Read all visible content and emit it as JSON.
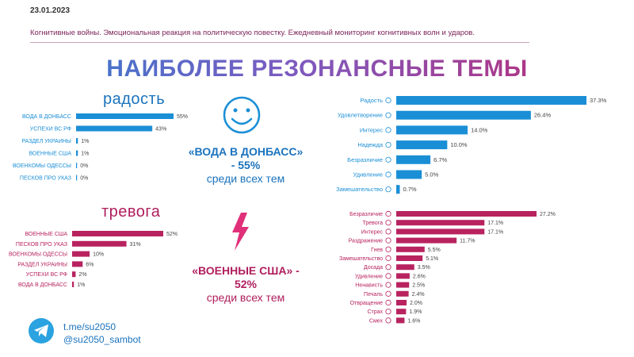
{
  "header": {
    "date": "23.01.2023",
    "subtitle": "Когнитивные войны. Эмоциональная реакция на политическую повестку. Ежедневный мониторинг когнитивных волн и ударов.",
    "title": "НАИБОЛЕЕ РЕЗОНАНСНЫЕ ТЕМЫ"
  },
  "colors": {
    "joy": "#1b8fd6",
    "anxiety": "#b8235f",
    "telegram": "#2aa3e0"
  },
  "joy": {
    "title": "радость",
    "callout_title": "«ВОДА В ДОНБАСС»",
    "callout_value": "- 55%",
    "callout_note": "среди всех тем",
    "icon": "smiley-face-icon"
  },
  "anxiety": {
    "title": "тревога",
    "callout_title": "«ВОЕННЫЕ США» -",
    "callout_value": "52%",
    "callout_note": "среди всех тем",
    "icon": "lightning-bolt-icon"
  },
  "contacts": {
    "icon": "telegram-icon",
    "channel": "t.me/su2050",
    "bot": "@su2050_sambot"
  },
  "chart_data": [
    {
      "type": "bar",
      "orientation": "horizontal",
      "categories": [
        "ВОДА В ДОНБАСС",
        "УСПЕХИ ВС РФ",
        "РАЗДЕЛ УКРАИНЫ",
        "ВОЕННЫЕ США",
        "ВОЕНКОМЫ ОДЕССЫ",
        "ПЕСКОВ ПРО УКАЗ"
      ],
      "values": [
        55,
        43,
        1,
        1,
        0,
        0
      ],
      "labels": [
        "55%",
        "43%",
        "1%",
        "1%",
        "0%",
        "0%"
      ],
      "xlim": [
        0,
        55
      ]
    },
    {
      "type": "bar",
      "orientation": "horizontal",
      "categories": [
        "ВОЕННЫЕ США",
        "ПЕСКОВ ПРО УКАЗ",
        "ВОЕНКОМЫ ОДЕССЫ",
        "РАЗДЕЛ УКРАИНЫ",
        "УСПЕХИ ВС РФ",
        "ВОДА В ДОНБАСС"
      ],
      "values": [
        52,
        31,
        10,
        6,
        2,
        1
      ],
      "labels": [
        "52%",
        "31%",
        "10%",
        "6%",
        "2%",
        "1%"
      ],
      "xlim": [
        0,
        52
      ]
    },
    {
      "type": "bar",
      "orientation": "horizontal",
      "categories": [
        "Радость",
        "Удовлетворение",
        "Интерес",
        "Надежда",
        "Безразличие",
        "Удивление",
        "Замешательство"
      ],
      "emoji_icons": [
        "smile-icon",
        "satisfied-icon",
        "interest-icon",
        "hope-icon",
        "indifference-icon",
        "surprise-icon",
        "confusion-icon"
      ],
      "values": [
        37.3,
        26.4,
        14.0,
        10.0,
        6.7,
        5.0,
        0.7
      ],
      "labels": [
        "37.3%",
        "26.4%",
        "14.0%",
        "10.0%",
        "6.7%",
        "5.0%",
        "0.7%"
      ],
      "xlim": [
        0,
        37.3
      ]
    },
    {
      "type": "bar",
      "orientation": "horizontal",
      "categories": [
        "Безразличие",
        "Тревога",
        "Интерес",
        "Раздражение",
        "Гнев",
        "Замешательство",
        "Досада",
        "Удивление",
        "Ненависть",
        "Печаль",
        "Отвращение",
        "Страх",
        "Смех"
      ],
      "emoji_icons": [
        "indifference-icon",
        "anxiety-icon",
        "interest-icon",
        "irritation-icon",
        "anger-icon",
        "confusion-icon",
        "annoyance-icon",
        "surprise-icon",
        "hatred-icon",
        "sadness-icon",
        "disgust-icon",
        "fear-icon",
        "laughter-icon"
      ],
      "values": [
        27.2,
        17.1,
        17.1,
        11.7,
        5.5,
        5.1,
        3.5,
        2.6,
        2.5,
        2.4,
        2.0,
        1.9,
        1.6
      ],
      "labels": [
        "27.2%",
        "17.1%",
        "17.1%",
        "11.7%",
        "5.5%",
        "5.1%",
        "3.5%",
        "2.6%",
        "2.5%",
        "2.4%",
        "2.0%",
        "1.9%",
        "1.6%"
      ],
      "xlim": [
        0,
        27.2
      ]
    }
  ]
}
